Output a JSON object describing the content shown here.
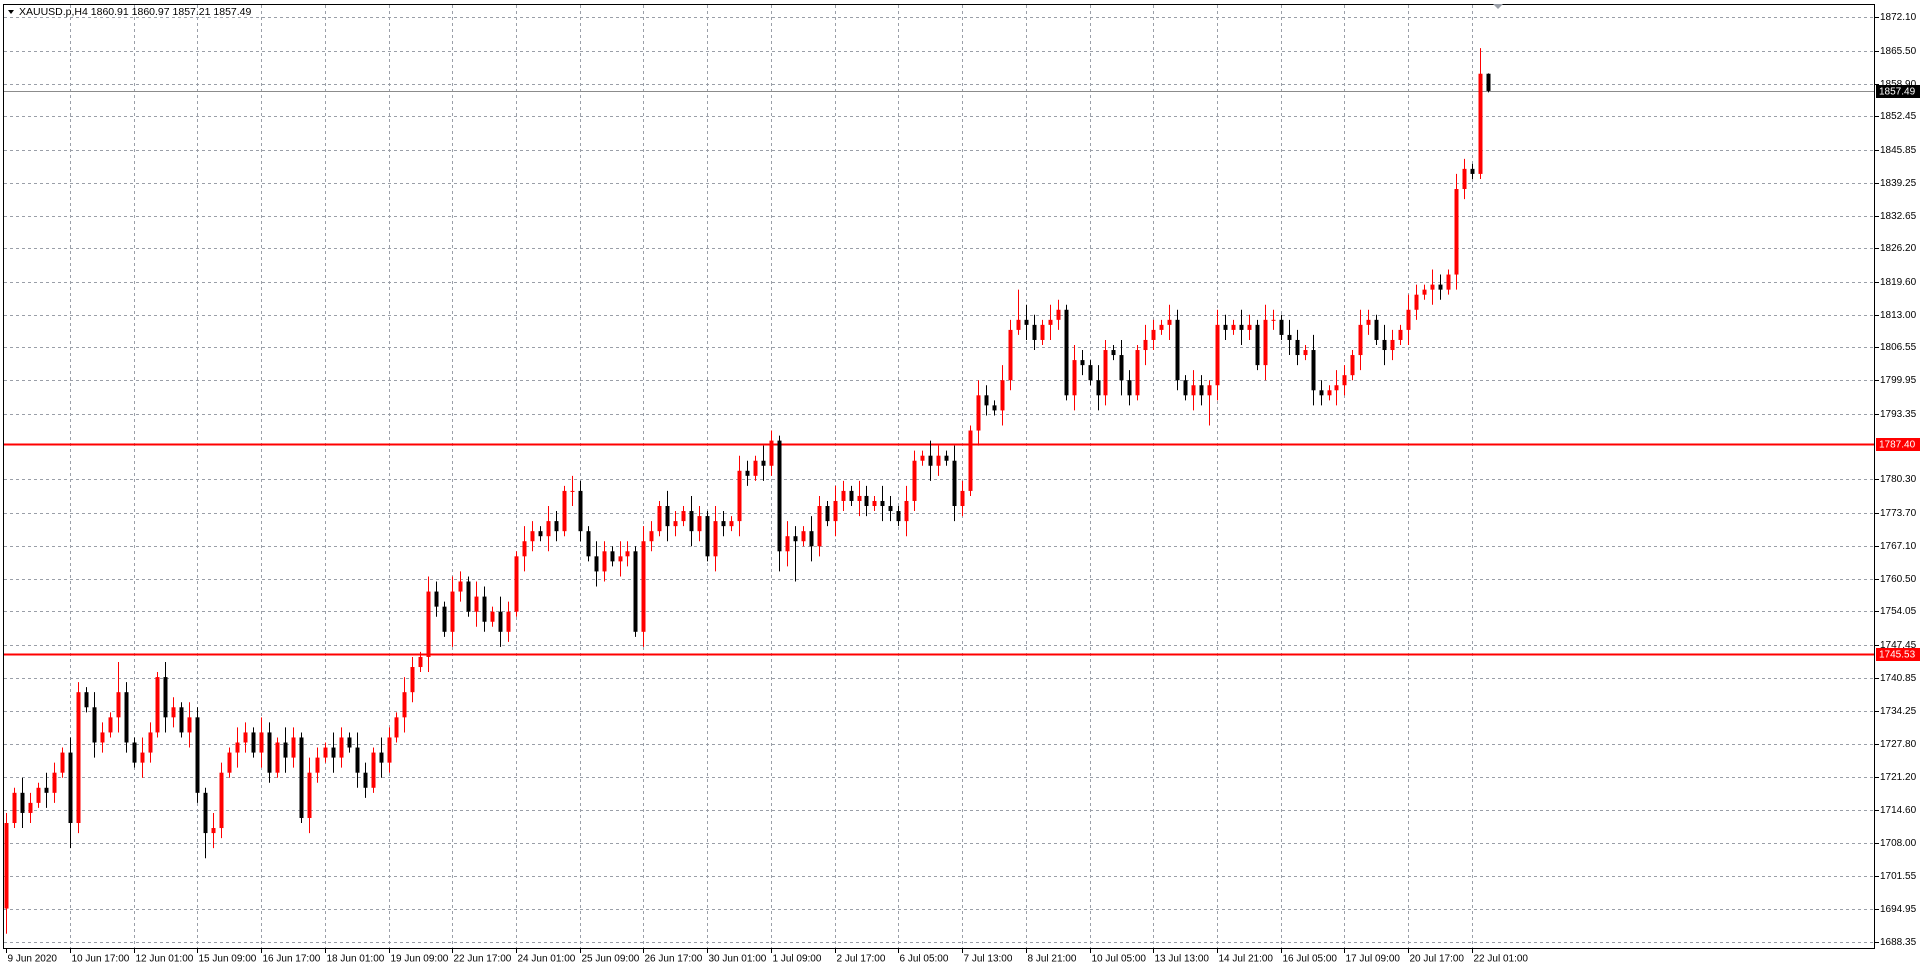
{
  "chart_data": {
    "type": "candlestick",
    "title": "XAUUSD.p,H4  1860.91 1860.97 1857.21 1857.49",
    "up_color": "#ff0000",
    "down_color": "#000000",
    "grid": true,
    "open": [
      1695,
      1712,
      1718,
      1714,
      1716,
      1719,
      1718,
      1722,
      1726,
      1712,
      1738,
      1735,
      1728,
      1730,
      1733,
      1738,
      1728,
      1724,
      1726,
      1730,
      1741,
      1733,
      1735,
      1730,
      1733,
      1718,
      1710,
      1711,
      1722,
      1726,
      1728,
      1730,
      1726,
      1730,
      1722,
      1728,
      1725,
      1729,
      1713,
      1722,
      1725,
      1727,
      1725,
      1729,
      1727,
      1722,
      1719,
      1726,
      1724,
      1729,
      1733,
      1738,
      1743,
      1745,
      1758,
      1755,
      1750,
      1758,
      1760,
      1754,
      1757,
      1752,
      1754,
      1750,
      1754,
      1765,
      1768,
      1770,
      1769,
      1772,
      1770,
      1778,
      1778,
      1770,
      1765,
      1762,
      1766,
      1764,
      1765,
      1766,
      1750,
      1768,
      1770,
      1775,
      1771,
      1772,
      1774,
      1770,
      1773,
      1765,
      1772,
      1771,
      1772,
      1782,
      1781,
      1784,
      1783,
      1788,
      1766,
      1769,
      1768,
      1770,
      1767,
      1775,
      1772,
      1776,
      1778,
      1776,
      1777,
      1775,
      1776,
      1775,
      1774,
      1772,
      1776,
      1784,
      1785,
      1783,
      1785,
      1784,
      1775,
      1778,
      1790,
      1797,
      1795,
      1794,
      1800,
      1810,
      1812,
      1811,
      1808,
      1811,
      1812,
      1814,
      1797,
      1804,
      1803,
      1800,
      1797,
      1806,
      1805,
      1800,
      1797,
      1806,
      1808,
      1810,
      1811,
      1812,
      1800,
      1797,
      1799,
      1797,
      1799,
      1811,
      1810,
      1811,
      1810,
      1811,
      1803,
      1812,
      1812,
      1809,
      1808,
      1805,
      1806,
      1798,
      1797,
      1798,
      1799,
      1801,
      1805,
      1811,
      1812,
      1808,
      1806,
      1808,
      1810,
      1814,
      1817,
      1818,
      1819,
      1818,
      1821,
      1838,
      1842,
      1841,
      1860.91
    ],
    "high": [
      1714,
      1719,
      1721,
      1718,
      1720,
      1722,
      1724,
      1727,
      1729,
      1740,
      1739,
      1738,
      1732,
      1734,
      1744,
      1740,
      1729,
      1729,
      1732,
      1742,
      1744,
      1737,
      1736,
      1736,
      1735,
      1719,
      1714,
      1724,
      1727,
      1731,
      1732,
      1731,
      1733,
      1732,
      1729,
      1731,
      1731,
      1730,
      1725,
      1727,
      1728,
      1730,
      1731,
      1730,
      1730,
      1724,
      1727,
      1729,
      1731,
      1734,
      1741,
      1745,
      1746,
      1761,
      1760,
      1756,
      1761,
      1762,
      1761,
      1760,
      1759,
      1755,
      1757,
      1756,
      1766,
      1771,
      1772,
      1771,
      1775,
      1774,
      1779,
      1781,
      1780,
      1771,
      1768,
      1768,
      1767,
      1768,
      1768,
      1767,
      1771,
      1772,
      1776,
      1778,
      1774,
      1775,
      1777,
      1775,
      1774,
      1775,
      1774,
      1773,
      1785,
      1784,
      1785,
      1787,
      1790,
      1789,
      1772,
      1771,
      1771,
      1773,
      1777,
      1776,
      1779,
      1780,
      1779,
      1780,
      1779,
      1777,
      1779,
      1777,
      1775,
      1779,
      1786,
      1786,
      1788,
      1787,
      1786,
      1787,
      1780,
      1791,
      1800,
      1799,
      1796,
      1803,
      1812,
      1818,
      1815,
      1813,
      1812,
      1815,
      1816,
      1815,
      1807,
      1806,
      1804,
      1803,
      1808,
      1807,
      1808,
      1802,
      1807,
      1811,
      1812,
      1812,
      1815,
      1814,
      1801,
      1802,
      1801,
      1800,
      1814,
      1813,
      1812,
      1814,
      1813,
      1812,
      1815,
      1814,
      1813,
      1812,
      1810,
      1807,
      1809,
      1800,
      1799,
      1802,
      1803,
      1806,
      1814,
      1814,
      1813,
      1811,
      1810,
      1811,
      1817,
      1819,
      1819,
      1822,
      1821,
      1822,
      1841,
      1844,
      1843,
      1866,
      1860.97
    ],
    "low": [
      1690,
      1711,
      1711,
      1712,
      1715,
      1715,
      1716,
      1721,
      1707,
      1710,
      1734,
      1725,
      1726,
      1729,
      1730,
      1726,
      1723,
      1721,
      1724,
      1729,
      1730,
      1731,
      1729,
      1727,
      1716,
      1705,
      1707,
      1709,
      1721,
      1723,
      1726,
      1725,
      1723,
      1720,
      1721,
      1722,
      1723,
      1712,
      1710,
      1720,
      1724,
      1722,
      1723,
      1726,
      1719,
      1717,
      1718,
      1721,
      1722,
      1728,
      1730,
      1736,
      1742,
      1742,
      1753,
      1749,
      1747,
      1756,
      1753,
      1751,
      1750,
      1751,
      1747,
      1748,
      1753,
      1762,
      1766,
      1768,
      1766,
      1768,
      1769,
      1775,
      1768,
      1764,
      1759,
      1760,
      1763,
      1761,
      1763,
      1749,
      1747,
      1766,
      1769,
      1768,
      1769,
      1771,
      1767,
      1768,
      1764,
      1762,
      1769,
      1770,
      1769,
      1779,
      1780,
      1780,
      1781,
      1762,
      1763,
      1760,
      1767,
      1764,
      1765,
      1771,
      1769,
      1774,
      1775,
      1773,
      1773,
      1774,
      1772,
      1772,
      1771,
      1769,
      1774,
      1783,
      1780,
      1781,
      1783,
      1772,
      1773,
      1777,
      1787,
      1793,
      1793,
      1791,
      1798,
      1809,
      1808,
      1806,
      1807,
      1808,
      1810,
      1796,
      1794,
      1801,
      1799,
      1794,
      1795,
      1804,
      1797,
      1795,
      1796,
      1803,
      1806,
      1809,
      1808,
      1798,
      1796,
      1794,
      1795,
      1791,
      1796,
      1808,
      1809,
      1807,
      1808,
      1802,
      1800,
      1810,
      1808,
      1805,
      1803,
      1804,
      1795,
      1795,
      1796,
      1795,
      1797,
      1800,
      1802,
      1809,
      1807,
      1803,
      1804,
      1807,
      1807,
      1812,
      1816,
      1815,
      1816,
      1817,
      1818,
      1836,
      1840,
      1840,
      1857.21
    ],
    "close": [
      1712,
      1718,
      1714,
      1716,
      1719,
      1718,
      1722,
      1726,
      1712,
      1738,
      1735,
      1728,
      1730,
      1733,
      1738,
      1728,
      1724,
      1726,
      1730,
      1741,
      1733,
      1735,
      1730,
      1733,
      1718,
      1710,
      1711,
      1722,
      1726,
      1728,
      1730,
      1726,
      1730,
      1722,
      1728,
      1725,
      1729,
      1713,
      1722,
      1725,
      1727,
      1725,
      1729,
      1727,
      1722,
      1719,
      1726,
      1724,
      1729,
      1733,
      1738,
      1743,
      1745,
      1758,
      1755,
      1750,
      1758,
      1760,
      1754,
      1757,
      1752,
      1754,
      1750,
      1754,
      1765,
      1768,
      1770,
      1769,
      1772,
      1770,
      1778,
      1778,
      1770,
      1765,
      1762,
      1766,
      1764,
      1765,
      1766,
      1750,
      1768,
      1770,
      1775,
      1771,
      1772,
      1774,
      1770,
      1773,
      1765,
      1772,
      1771,
      1772,
      1782,
      1781,
      1784,
      1783,
      1788,
      1766,
      1769,
      1768,
      1770,
      1767,
      1775,
      1772,
      1776,
      1778,
      1776,
      1777,
      1775,
      1776,
      1775,
      1774,
      1772,
      1776,
      1784,
      1785,
      1783,
      1785,
      1784,
      1775,
      1778,
      1790,
      1797,
      1795,
      1794,
      1800,
      1810,
      1812,
      1811,
      1808,
      1811,
      1812,
      1814,
      1797,
      1804,
      1803,
      1800,
      1797,
      1806,
      1805,
      1800,
      1797,
      1806,
      1808,
      1810,
      1811,
      1812,
      1800,
      1797,
      1799,
      1797,
      1799,
      1811,
      1810,
      1811,
      1810,
      1811,
      1803,
      1812,
      1812,
      1809,
      1808,
      1805,
      1806,
      1798,
      1797,
      1798,
      1799,
      1801,
      1805,
      1811,
      1812,
      1808,
      1806,
      1808,
      1810,
      1814,
      1817,
      1818,
      1819,
      1818,
      1821,
      1838,
      1842,
      1841,
      1860.91,
      1857.49
    ],
    "xlim": [
      -0.77,
      234.6
    ],
    "xticks": [
      {
        "value": 0,
        "label": "9 Jun 2020"
      },
      {
        "value": 8,
        "label": "10 Jun 17:00"
      },
      {
        "value": 16,
        "label": "12 Jun 01:00"
      },
      {
        "value": 24,
        "label": "15 Jun 09:00"
      },
      {
        "value": 32,
        "label": "16 Jun 17:00"
      },
      {
        "value": 40,
        "label": "18 Jun 01:00"
      },
      {
        "value": 48,
        "label": "19 Jun 09:00"
      },
      {
        "value": 56,
        "label": "22 Jun 17:00"
      },
      {
        "value": 64,
        "label": "24 Jun 01:00"
      },
      {
        "value": 72,
        "label": "25 Jun 09:00"
      },
      {
        "value": 80,
        "label": "26 Jun 17:00"
      },
      {
        "value": 88,
        "label": "30 Jun 01:00"
      },
      {
        "value": 96,
        "label": "1 Jul 09:00"
      },
      {
        "value": 104,
        "label": "2 Jul 17:00"
      },
      {
        "value": 112,
        "label": "6 Jul 05:00"
      },
      {
        "value": 120,
        "label": "7 Jul 13:00"
      },
      {
        "value": 128,
        "label": "8 Jul 21:00"
      },
      {
        "value": 136,
        "label": "10 Jul 05:00"
      },
      {
        "value": 144,
        "label": "13 Jul 13:00"
      },
      {
        "value": 152,
        "label": "14 Jul 21:00"
      },
      {
        "value": 160,
        "label": "16 Jul 05:00"
      },
      {
        "value": 168,
        "label": "17 Jul 09:00"
      },
      {
        "value": 176,
        "label": "20 Jul 17:00"
      },
      {
        "value": 184,
        "label": "22 Jul 01:00"
      }
    ],
    "ylim": [
      1687.16,
      1874.57
    ],
    "yticks": [
      {
        "value": 1872.1,
        "label": "1872.10"
      },
      {
        "value": 1865.5,
        "label": "1865.50"
      },
      {
        "value": 1858.9,
        "label": "1858.90"
      },
      {
        "value": 1852.45,
        "label": "1852.45"
      },
      {
        "value": 1845.85,
        "label": "1845.85"
      },
      {
        "value": 1839.25,
        "label": "1839.25"
      },
      {
        "value": 1832.65,
        "label": "1832.65"
      },
      {
        "value": 1826.2,
        "label": "1826.20"
      },
      {
        "value": 1819.6,
        "label": "1819.60"
      },
      {
        "value": 1813,
        "label": "1813.00"
      },
      {
        "value": 1806.55,
        "label": "1806.55"
      },
      {
        "value": 1799.95,
        "label": "1799.95"
      },
      {
        "value": 1793.35,
        "label": "1793.35"
      },
      {
        "value": 1780.3,
        "label": "1780.30"
      },
      {
        "value": 1773.7,
        "label": "1773.70"
      },
      {
        "value": 1767.1,
        "label": "1767.10"
      },
      {
        "value": 1760.5,
        "label": "1760.50"
      },
      {
        "value": 1754.05,
        "label": "1754.05"
      },
      {
        "value": 1747.45,
        "label": "1747.45"
      },
      {
        "value": 1740.85,
        "label": "1740.85"
      },
      {
        "value": 1734.25,
        "label": "1734.25"
      },
      {
        "value": 1727.8,
        "label": "1727.80"
      },
      {
        "value": 1721.2,
        "label": "1721.20"
      },
      {
        "value": 1714.6,
        "label": "1714.60"
      },
      {
        "value": 1708,
        "label": "1708.00"
      },
      {
        "value": 1701.55,
        "label": "1701.55"
      },
      {
        "value": 1694.95,
        "label": "1694.95"
      },
      {
        "value": 1688.35,
        "label": "1688.35"
      }
    ],
    "hlines": [
      {
        "value": 1857.49,
        "label": "1857.49",
        "color": "#8c8c8c",
        "label_color": "#000000"
      },
      {
        "value": 1787.4,
        "label": "1787.40",
        "color": "#ff0000",
        "label_color": "#ff0000"
      },
      {
        "value": 1745.53,
        "label": "1745.53",
        "color": "#ff0000",
        "label_color": "#ff0000"
      }
    ]
  }
}
